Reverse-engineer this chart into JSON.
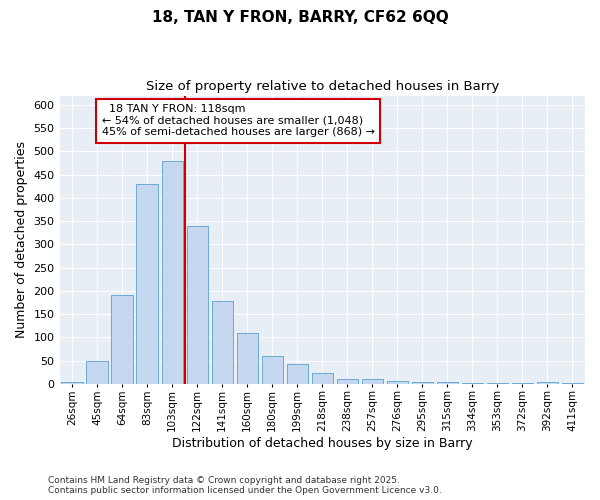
{
  "title_line1": "18, TAN Y FRON, BARRY, CF62 6QQ",
  "title_line2": "Size of property relative to detached houses in Barry",
  "xlabel": "Distribution of detached houses by size in Barry",
  "ylabel": "Number of detached properties",
  "categories": [
    "26sqm",
    "45sqm",
    "64sqm",
    "83sqm",
    "103sqm",
    "122sqm",
    "141sqm",
    "160sqm",
    "180sqm",
    "199sqm",
    "218sqm",
    "238sqm",
    "257sqm",
    "276sqm",
    "295sqm",
    "315sqm",
    "334sqm",
    "353sqm",
    "372sqm",
    "392sqm",
    "411sqm"
  ],
  "values": [
    3,
    50,
    190,
    430,
    480,
    340,
    178,
    110,
    60,
    43,
    23,
    10,
    10,
    5,
    4,
    3,
    2,
    1,
    1,
    4,
    1
  ],
  "bar_color": "#c5d8f0",
  "bar_edge_color": "#6aaad4",
  "bg_color": "#e8eef6",
  "grid_color": "#ffffff",
  "vline_x": 4.5,
  "vline_color": "#cc0000",
  "annotation_title": "18 TAN Y FRON: 118sqm",
  "annotation_line1": "← 54% of detached houses are smaller (1,048)",
  "annotation_line2": "45% of semi-detached houses are larger (868) →",
  "annotation_box_color": "#cc0000",
  "footnote": "Contains HM Land Registry data © Crown copyright and database right 2025.\nContains public sector information licensed under the Open Government Licence v3.0.",
  "ylim": [
    0,
    620
  ],
  "yticks": [
    0,
    50,
    100,
    150,
    200,
    250,
    300,
    350,
    400,
    450,
    500,
    550,
    600
  ]
}
